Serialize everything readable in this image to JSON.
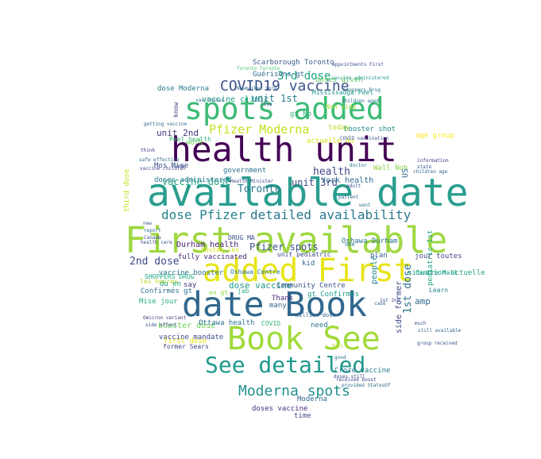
{
  "wordcloud": {
    "words": [
      {
        "text": "available date",
        "color": "#2a9d8f"
      },
      {
        "text": "First available",
        "color": "#9fd842"
      },
      {
        "text": "health unit",
        "color": "#440154"
      },
      {
        "text": "spots added",
        "color": "#3cbb75"
      },
      {
        "text": "date Book",
        "color": "#31688e"
      },
      {
        "text": "added First",
        "color": "#e7e419"
      },
      {
        "text": "Book See",
        "color": "#a0da39"
      },
      {
        "text": "See detailed",
        "color": "#1f988b"
      },
      {
        "text": "dose Pfizer",
        "color": "#26828e"
      },
      {
        "text": "detailed availability",
        "color": "#2a788e"
      },
      {
        "text": "COVID19 vaccine",
        "color": "#3b528b"
      },
      {
        "text": "Moderna spots",
        "color": "#21918c"
      },
      {
        "text": "Pfizer Moderna",
        "color": "#c5e021"
      },
      {
        "text": "3rd dose",
        "color": "#20a486"
      },
      {
        "text": "2nd dose",
        "color": "#3e4a89"
      },
      {
        "text": "1st dose",
        "color": "#2c728e"
      },
      {
        "text": "Toronto",
        "color": "#2a788e"
      },
      {
        "text": "health",
        "color": "#3e4989"
      },
      {
        "text": "Scarborough Toronto",
        "color": "#38598c"
      },
      {
        "text": "vaccine clinic",
        "color": "#1f9e89"
      },
      {
        "text": "unit 1st",
        "color": "#277f8e"
      },
      {
        "text": "Durham health",
        "color": "#481f70"
      },
      {
        "text": "Pfizer spots",
        "color": "#3b528b"
      },
      {
        "text": "vaccine dose",
        "color": "#25ab82"
      },
      {
        "text": "unit 2nd",
        "color": "#46337e"
      },
      {
        "text": "unit 3rd",
        "color": "#3f4788"
      },
      {
        "text": "York health",
        "color": "#31688e"
      },
      {
        "text": "Peel health",
        "color": "#35b779"
      },
      {
        "text": "Oshawa Durham",
        "color": "#2c728e"
      },
      {
        "text": "booster shot",
        "color": "#23888e"
      },
      {
        "text": "dose vaccine",
        "color": "#1f9a8a"
      },
      {
        "text": "vaccine booster",
        "color": "#2c728e"
      },
      {
        "text": "booster dose",
        "color": "#6ece58"
      },
      {
        "text": "vaccine mandate",
        "color": "#3e4989"
      },
      {
        "text": "Moderna",
        "color": "#31688e"
      },
      {
        "text": "doses vaccine",
        "color": "#472d7b"
      },
      {
        "text": "Community Centre",
        "color": "#3b528b"
      },
      {
        "text": "fully vaccinated",
        "color": "#482878"
      },
      {
        "text": "Ottawa health",
        "color": "#2d708e"
      },
      {
        "text": "SHOPPERS DRUG",
        "color": "#22a884"
      },
      {
        "text": "Guérisons gt",
        "color": "#31688e"
      },
      {
        "text": "doses given",
        "color": "#5ec962"
      },
      {
        "text": "Mississauga Peel",
        "color": "#1f988b"
      },
      {
        "text": "gt No",
        "color": "#30b57a"
      },
      {
        "text": "amp",
        "color": "#31688e"
      },
      {
        "text": "people",
        "color": "#26828e"
      },
      {
        "text": "government",
        "color": "#2c728e"
      },
      {
        "text": "first dose",
        "color": "#e5e419"
      },
      {
        "text": "former Sears",
        "color": "#3e4a89"
      },
      {
        "text": "Mise jour",
        "color": "#27ad81"
      },
      {
        "text": "les heures",
        "color": "#b8de29"
      },
      {
        "text": "Confirmés gt",
        "color": "#2c728e"
      },
      {
        "text": "gt Confirmés",
        "color": "#1f9e89"
      },
      {
        "text": "toutes les",
        "color": "#dde318"
      },
      {
        "text": "Mos Mise",
        "color": "#3b528b"
      },
      {
        "text": "doses administered",
        "color": "#2a788e"
      },
      {
        "text": "DRUG MA",
        "color": "#3b528b"
      },
      {
        "text": "Oshawa Centre",
        "color": "#2a788e"
      },
      {
        "text": "situation actuelle",
        "color": "#20a386"
      },
      {
        "text": "pediatric 1st",
        "color": "#22a884"
      },
      {
        "text": "jour toutes",
        "color": "#3f4788"
      },
      {
        "text": "Centre Mall",
        "color": "#1fa188"
      },
      {
        "text": "need",
        "color": "#2c728e"
      },
      {
        "text": "COVID",
        "color": "#35b779"
      },
      {
        "text": "many",
        "color": "#31688e"
      },
      {
        "text": "Thank",
        "color": "#472f7d"
      },
      {
        "text": "today",
        "color": "#b5de2b"
      },
      {
        "text": "third dose",
        "color": "#c8e020"
      },
      {
        "text": "time",
        "color": "#3e4a89"
      },
      {
        "text": "actuelle du",
        "color": "#d8e219"
      },
      {
        "text": "kid",
        "color": "#31688e"
      },
      {
        "text": "one",
        "color": "#2c728e"
      },
      {
        "text": "plan",
        "color": "#38598c"
      },
      {
        "text": "Learn",
        "color": "#27808e"
      },
      {
        "text": "know",
        "color": "#443983"
      },
      {
        "text": "work",
        "color": "#6ccd5a"
      },
      {
        "text": "jab",
        "color": "#29af7f"
      },
      {
        "text": "Crore vaccine",
        "color": "#2a788e"
      },
      {
        "text": "side former",
        "color": "#3e4a89"
      },
      {
        "text": "dose Moderna",
        "color": "#2a788e"
      },
      {
        "text": "en gt",
        "color": "#8bd646"
      },
      {
        "text": "du en",
        "color": "#20a386"
      },
      {
        "text": "say",
        "color": "#46327e"
      },
      {
        "text": "unit pediatric",
        "color": "#3e4989"
      },
      {
        "text": "Noh side",
        "color": "#a2da37"
      },
      {
        "text": "Wall Noh",
        "color": "#8bd646"
      },
      {
        "text": "age group",
        "color": "#fde725"
      },
      {
        "text": "US",
        "color": "#31688e"
      },
      {
        "text": "Toronto Toronto",
        "color": "#44bf70"
      },
      {
        "text": "Health Minister",
        "color": "#3e4a89"
      },
      {
        "text": "Newmarket York",
        "color": "#2c728e"
      },
      {
        "text": "vaccine administered",
        "color": "#1f988b"
      },
      {
        "text": "appointments First",
        "color": "#3b528b"
      },
      {
        "text": "Shoppers Drug",
        "color": "#2a788e"
      },
      {
        "text": "children aged",
        "color": "#2c728e"
      },
      {
        "text": "group received",
        "color": "#3b528b"
      },
      {
        "text": "received boost",
        "color": "#3e4a89"
      },
      {
        "text": "provided StatesOf",
        "color": "#31688e"
      },
      {
        "text": "Omicron variant",
        "color": "#472d7b"
      },
      {
        "text": "side effect",
        "color": "#3b528b"
      },
      {
        "text": "safe effective",
        "color": "#31688e"
      },
      {
        "text": "vaccine children",
        "color": "#3e4a89"
      },
      {
        "text": "information",
        "color": "#46327e"
      },
      {
        "text": "state",
        "color": "#3b528b"
      },
      {
        "text": "doctor",
        "color": "#2c728e"
      },
      {
        "text": "patient",
        "color": "#31688e"
      },
      {
        "text": "adult",
        "color": "#3e4a89"
      },
      {
        "text": "want",
        "color": "#2a788e"
      },
      {
        "text": "much",
        "color": "#3b528b"
      },
      {
        "text": "still available",
        "color": "#31688e"
      },
      {
        "text": "1st 2nd",
        "color": "#3e4a89"
      },
      {
        "text": "good",
        "color": "#2c728e"
      },
      {
        "text": "come",
        "color": "#3b528b"
      },
      {
        "text": "think",
        "color": "#46327e"
      },
      {
        "text": "live",
        "color": "#3e4a89"
      },
      {
        "text": "getting vaccine",
        "color": "#31688e"
      },
      {
        "text": "vaccinated",
        "color": "#2c728e"
      },
      {
        "text": "COVID vaccination",
        "color": "#3b528b"
      },
      {
        "text": "million dose",
        "color": "#31688e"
      },
      {
        "text": "Mall",
        "color": "#b5de2b"
      },
      {
        "text": "doses still",
        "color": "#3e4a89"
      },
      {
        "text": "children age",
        "color": "#31688e"
      },
      {
        "text": "health care",
        "color": "#3b528b"
      },
      {
        "text": "report",
        "color": "#2c728e"
      },
      {
        "text": "Canada",
        "color": "#3e4a89"
      },
      {
        "text": "case",
        "color": "#31688e"
      },
      {
        "text": "new",
        "color": "#3b528b"
      },
      {
        "text": "pharmacy",
        "color": "#2a788e"
      }
    ]
  }
}
